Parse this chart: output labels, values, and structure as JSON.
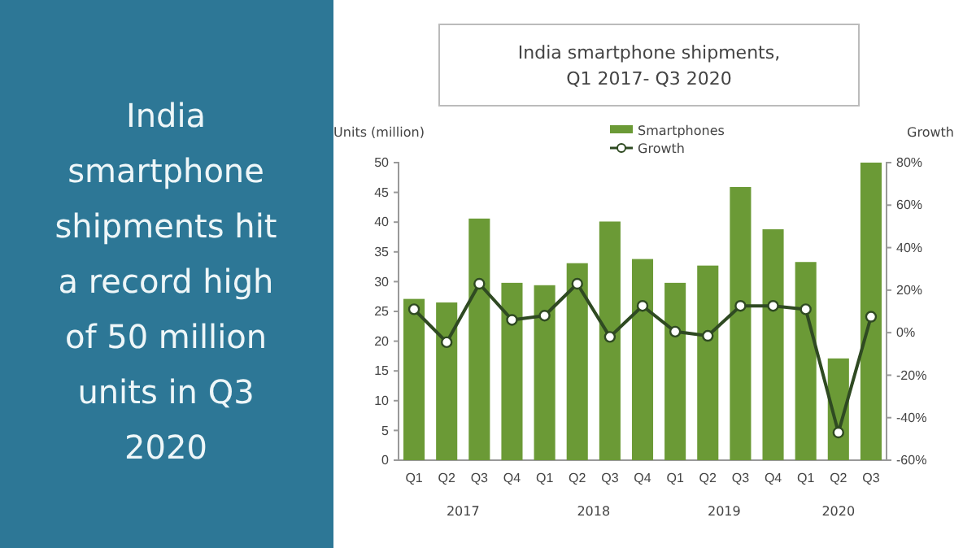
{
  "chart_data": {
    "type": "bar",
    "title": "India smartphone shipments,\nQ1 2017- Q3 2020",
    "ylabel": "Units (million)",
    "y2label": "Growth",
    "categories": [
      "Q1",
      "Q2",
      "Q3",
      "Q4",
      "Q1",
      "Q2",
      "Q3",
      "Q4",
      "Q1",
      "Q2",
      "Q3",
      "Q4",
      "Q1",
      "Q2",
      "Q3"
    ],
    "series": [
      {
        "name": "Smartphones",
        "color": "#6b9a36",
        "values": [
          27.1,
          26.5,
          40.6,
          29.8,
          29.4,
          33.1,
          40.1,
          33.8,
          29.8,
          32.7,
          45.9,
          38.8,
          33.3,
          17.1,
          50
        ]
      },
      {
        "name": "Growth",
        "type": "line",
        "axis": "y2",
        "color": "#2f4a22",
        "marker": "circle",
        "values": [
          11,
          -4.5,
          23,
          6,
          8,
          23,
          -2,
          12.6,
          0.5,
          -1.5,
          12.6,
          12.6,
          11,
          -47,
          7.5
        ]
      }
    ],
    "ylim": [
      0,
      50
    ],
    "yticks": [
      0,
      5,
      10,
      15,
      20,
      25,
      30,
      35,
      40,
      45,
      50
    ],
    "y2lim": [
      -60,
      80
    ],
    "y2ticks": [
      {
        "value": -60,
        "label": "-60%"
      },
      {
        "value": -40,
        "label": "-40%"
      },
      {
        "value": -20,
        "label": "-20%"
      },
      {
        "value": 0,
        "label": "0%"
      },
      {
        "value": 20,
        "label": "20%"
      },
      {
        "value": 40,
        "label": "40%"
      },
      {
        "value": 60,
        "label": "60%"
      },
      {
        "value": 80,
        "label": "80%"
      }
    ],
    "legend": "top",
    "annotations": [
      "India smartphone shipments hit a record high of 50 million units in Q3 2020",
      "2017",
      "2018",
      "2019",
      "2020"
    ]
  }
}
